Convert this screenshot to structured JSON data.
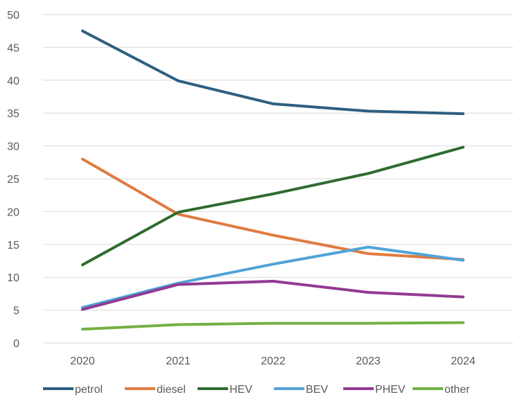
{
  "chart_data": {
    "type": "line",
    "title": "",
    "xlabel": "",
    "ylabel": "",
    "categories": [
      "2020",
      "2021",
      "2022",
      "2023",
      "2024"
    ],
    "ylim": [
      0,
      50
    ],
    "yticks": [
      0,
      5,
      10,
      15,
      20,
      25,
      30,
      35,
      40,
      45,
      50
    ],
    "grid": true,
    "legend_position": "bottom",
    "series": [
      {
        "name": "petrol",
        "color": "#2e5f80",
        "values": [
          47.5,
          39.9,
          36.4,
          35.3,
          34.9
        ]
      },
      {
        "name": "diesel",
        "color": "#e07b40",
        "values": [
          28.0,
          19.6,
          16.4,
          13.6,
          12.7
        ]
      },
      {
        "name": "HEV",
        "color": "#2f6b2f",
        "values": [
          11.9,
          19.9,
          22.7,
          25.8,
          29.8
        ]
      },
      {
        "name": "BEV",
        "color": "#4fa3d8",
        "values": [
          5.4,
          9.1,
          12.0,
          14.6,
          12.6
        ]
      },
      {
        "name": "PHEV",
        "color": "#923a92",
        "values": [
          5.1,
          8.9,
          9.4,
          7.7,
          7.0
        ]
      },
      {
        "name": "other",
        "color": "#72b043",
        "values": [
          2.1,
          2.8,
          3.0,
          3.0,
          3.1
        ]
      }
    ]
  }
}
